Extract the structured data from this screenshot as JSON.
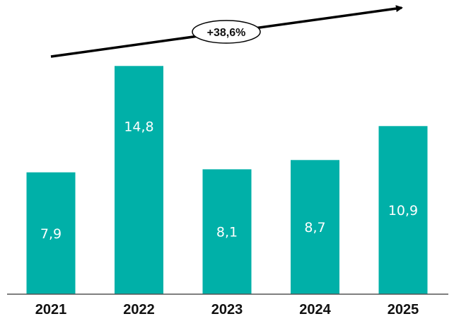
{
  "chart_data": {
    "type": "bar",
    "categories": [
      "2021",
      "2022",
      "2023",
      "2024",
      "2025"
    ],
    "values": [
      7.9,
      14.8,
      8.1,
      8.7,
      10.9
    ],
    "value_labels": [
      "7,9",
      "14,8",
      "8,1",
      "8,7",
      "10,9"
    ],
    "title": "",
    "xlabel": "",
    "ylabel": "",
    "ylim": [
      0,
      15.5
    ],
    "grid": false,
    "legend": "none",
    "bar_color": "#00b0a8",
    "annotation": {
      "type": "trend-arrow",
      "text": "+38,6%"
    }
  }
}
